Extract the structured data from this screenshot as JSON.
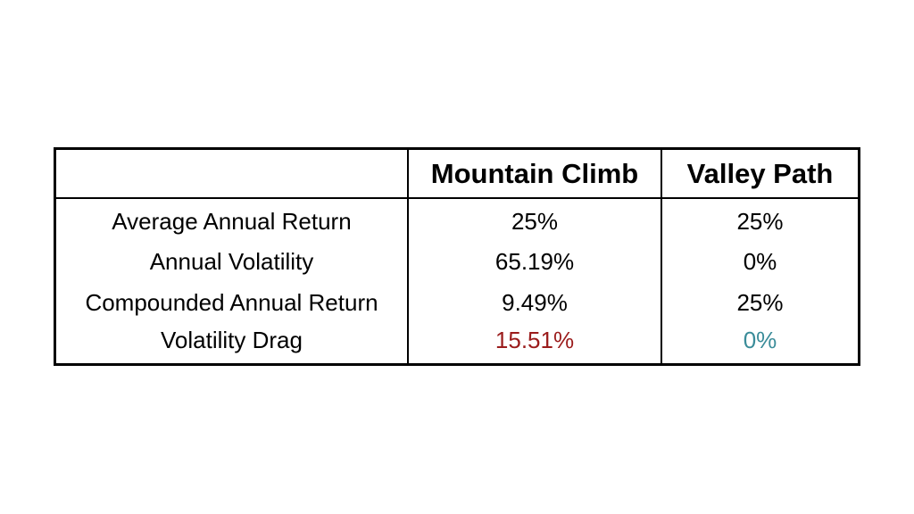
{
  "table": {
    "headers": [
      "",
      "Mountain Climb",
      "Valley Path"
    ],
    "rows": [
      {
        "label": "Average Annual Return",
        "mountain": "25%",
        "valley": "25%"
      },
      {
        "label": "Annual Volatility",
        "mountain": "65.19%",
        "valley": "0%"
      },
      {
        "label": "Compounded Annual Return",
        "mountain": "9.49%",
        "valley": "25%"
      },
      {
        "label": "Volatility Drag",
        "mountain": "15.51%",
        "valley": "0%"
      }
    ]
  },
  "colors": {
    "negative": "#9b1c1c",
    "positive": "#3a8c99",
    "border": "#000000",
    "text": "#000000"
  }
}
